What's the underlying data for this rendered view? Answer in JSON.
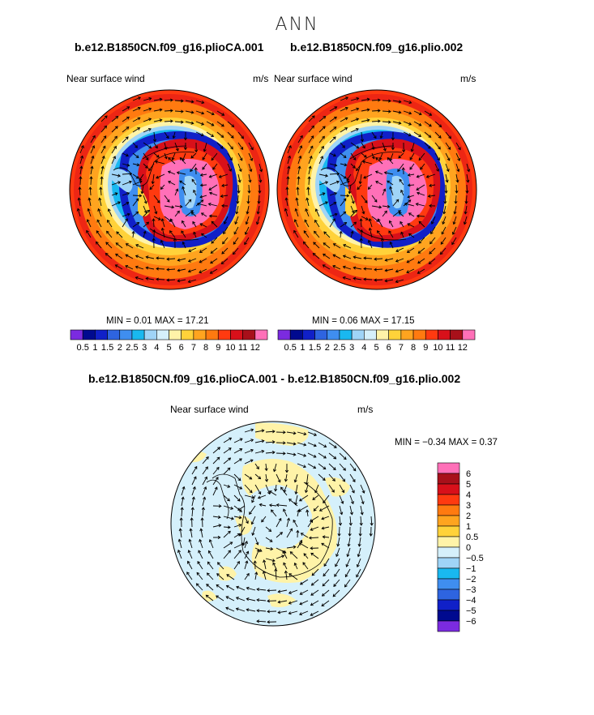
{
  "figure": {
    "season": "ANN",
    "case_a": "b.e12.B1850CN.f09_g16.plioCA.001",
    "case_b": "b.e12.B1850CN.f09_g16.plio.002",
    "diff_title": "b.e12.B1850CN.f09_g16.plioCA.001 - b.e12.B1850CN.f09_g16.plio.002"
  },
  "panels": [
    {
      "variable": "Near surface wind",
      "units": "m/s",
      "min_text": "MIN =    0.01  MAX =    17.21"
    },
    {
      "variable": "Near surface wind",
      "units": "m/s",
      "min_text": "MIN =    0.06  MAX =    17.15"
    },
    {
      "variable": "Near surface wind",
      "units": "m/s",
      "min_text": "MIN =   −0.34  MAX =    0.37"
    }
  ],
  "chart_data": [
    {
      "type": "heatmap",
      "projection": "south polar stereographic",
      "field": "Near surface wind",
      "units": "m/s",
      "min": 0.01,
      "max": 17.21,
      "contour_levels": [
        0.5,
        1,
        1.5,
        2,
        2.5,
        3,
        4,
        5,
        6,
        7,
        8,
        9,
        10,
        11,
        12
      ],
      "level_labels": [
        "0.5",
        "1",
        "1.5",
        "2",
        "2.5",
        "3",
        "4",
        "5",
        "6",
        "7",
        "8",
        "9",
        "10",
        "11",
        "12"
      ],
      "colors": [
        "#7b2be0",
        "#000a8f",
        "#1020c8",
        "#2e64e0",
        "#3f8ef0",
        "#19b8f0",
        "#9fd4f7",
        "#d5f0fb",
        "#fff3a8",
        "#ffd23a",
        "#ffa41f",
        "#ff7a10",
        "#ff3a10",
        "#d8101a",
        "#a8101a",
        "#ff70b8"
      ],
      "vectors": "wind vectors overlaid"
    },
    {
      "type": "heatmap",
      "projection": "south polar stereographic",
      "field": "Near surface wind",
      "units": "m/s",
      "min": 0.06,
      "max": 17.15,
      "contour_levels": [
        0.5,
        1,
        1.5,
        2,
        2.5,
        3,
        4,
        5,
        6,
        7,
        8,
        9,
        10,
        11,
        12
      ],
      "level_labels": [
        "0.5",
        "1",
        "1.5",
        "2",
        "2.5",
        "3",
        "4",
        "5",
        "6",
        "7",
        "8",
        "9",
        "10",
        "11",
        "12"
      ],
      "colors": [
        "#7b2be0",
        "#000a8f",
        "#1020c8",
        "#2e64e0",
        "#3f8ef0",
        "#19b8f0",
        "#9fd4f7",
        "#d5f0fb",
        "#fff3a8",
        "#ffd23a",
        "#ffa41f",
        "#ff7a10",
        "#ff3a10",
        "#d8101a",
        "#a8101a",
        "#ff70b8"
      ],
      "vectors": "wind vectors overlaid"
    },
    {
      "type": "heatmap",
      "projection": "south polar stereographic",
      "field": "Near surface wind difference",
      "units": "m/s",
      "min": -0.34,
      "max": 0.37,
      "contour_levels": [
        -6,
        -5,
        -4,
        -3,
        -2,
        -1,
        -0.5,
        0,
        0.5,
        1,
        2,
        3,
        4,
        5,
        6
      ],
      "level_labels": [
        "−6",
        "−5",
        "−4",
        "−3",
        "−2",
        "−1",
        "−0.5",
        "0",
        "0.5",
        "1",
        "2",
        "3",
        "4",
        "5",
        "6"
      ],
      "colors": [
        "#7b2be0",
        "#000a8f",
        "#1020c8",
        "#2e64e0",
        "#3f8ef0",
        "#19b8f0",
        "#9fd4f7",
        "#d5f0fb",
        "#fff3a8",
        "#ffd23a",
        "#ffa41f",
        "#ff7a10",
        "#ff3a10",
        "#d8101a",
        "#a8101a",
        "#ff70b8"
      ],
      "vectors": "wind difference vectors overlaid"
    }
  ]
}
